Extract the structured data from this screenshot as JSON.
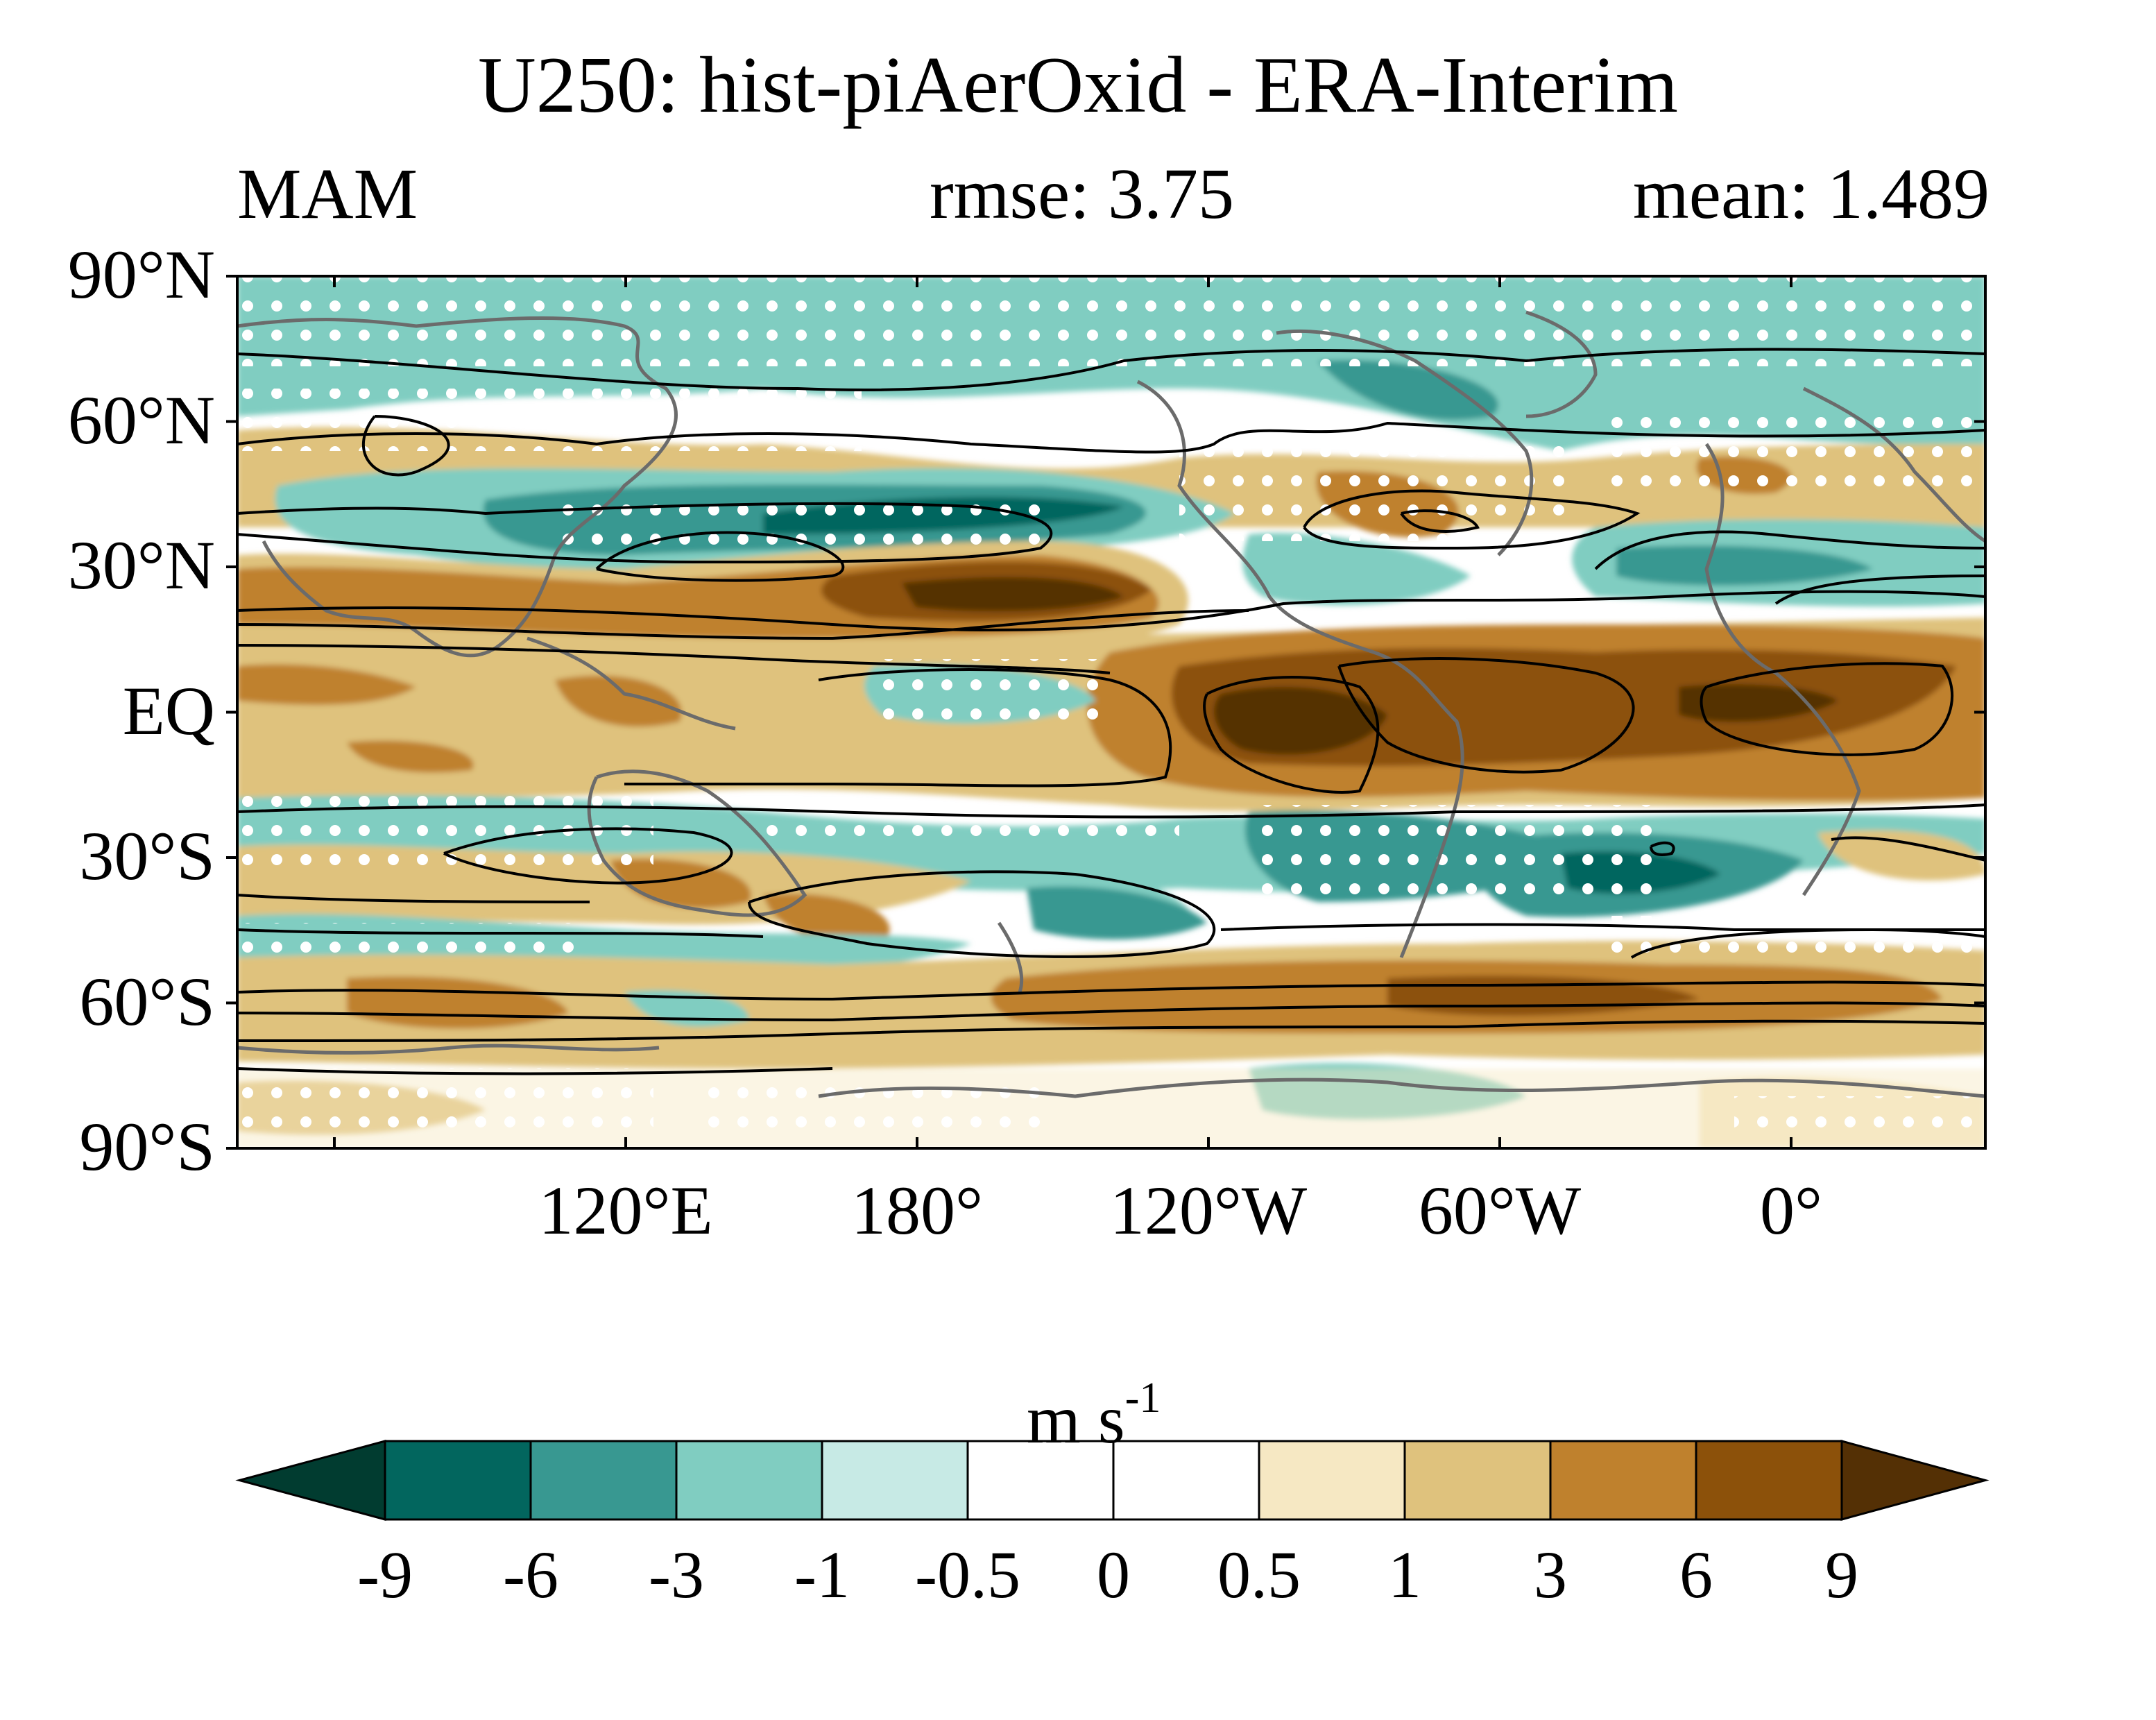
{
  "title": "U250: hist-piAerOxid - ERA-Interim",
  "season": "MAM",
  "rmse_text": "rmse: 3.75",
  "mean_text": "mean: 1.489",
  "lat_labels": [
    "90°N",
    "60°N",
    "30°N",
    "EQ",
    "30°S",
    "60°S",
    "90°S"
  ],
  "lat_values": [
    90,
    60,
    30,
    0,
    -30,
    -60,
    -90
  ],
  "lon_labels": [
    "120°E",
    "180°",
    "120°W",
    "60°W",
    "0°"
  ],
  "lon_values": [
    120,
    180,
    -120,
    -60,
    0
  ],
  "map_extent": {
    "lon_start": 40,
    "lon_end": 400,
    "lat_min": -90,
    "lat_max": 90
  },
  "colorbar": {
    "unit_base": "m s",
    "unit_exp": "-1",
    "levels": [
      "-9",
      "-6",
      "-3",
      "-1",
      "-0.5",
      "0",
      "0.5",
      "1",
      "3",
      "6",
      "9"
    ],
    "colors": [
      "#013c30",
      "#02665e",
      "#389891",
      "#80cdc1",
      "#c7eae5",
      "#ffffff",
      "#ffffff",
      "#f6e8c3",
      "#dfc27d",
      "#bf812d",
      "#8c510a",
      "#543005"
    ]
  },
  "colors": {
    "coastline": "#6b6b6b",
    "contour": "#000000",
    "stipple": "#ffffff"
  }
}
